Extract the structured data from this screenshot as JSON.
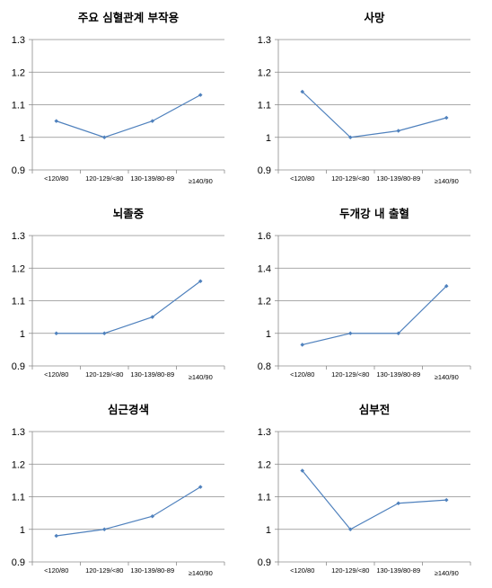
{
  "chart_data": [
    {
      "type": "line",
      "title": "주요 심혈관계 부작용",
      "categories": [
        "<120/80",
        "120-129/<80",
        "130-139/80-89",
        "≥140/90"
      ],
      "values": [
        1.05,
        1.0,
        1.05,
        1.13
      ],
      "ylim": [
        0.9,
        1.3
      ],
      "yticks": [
        "0.9",
        "1",
        "1.1",
        "1.2",
        "1.3"
      ],
      "grid": true,
      "color": "#4F81BD"
    },
    {
      "type": "line",
      "title": "사망",
      "categories": [
        "<120/80",
        "120-129/<80",
        "130-139/80-89",
        "≥140/90"
      ],
      "values": [
        1.14,
        1.0,
        1.02,
        1.06
      ],
      "ylim": [
        0.9,
        1.3
      ],
      "yticks": [
        "0.9",
        "1",
        "1.1",
        "1.2",
        "1.3"
      ],
      "grid": true,
      "color": "#4F81BD"
    },
    {
      "type": "line",
      "title": "뇌졸중",
      "categories": [
        "<120/80",
        "120-129/<80",
        "130-139/80-89",
        "≥140/90"
      ],
      "values": [
        1.0,
        1.0,
        1.05,
        1.16
      ],
      "ylim": [
        0.9,
        1.3
      ],
      "yticks": [
        "0.9",
        "1",
        "1.1",
        "1.2",
        "1.3"
      ],
      "grid": true,
      "color": "#4F81BD"
    },
    {
      "type": "line",
      "title": "두개강 내 출혈",
      "categories": [
        "<120/80",
        "120-129/<80",
        "130-139/80-89",
        "≥140/90"
      ],
      "values": [
        0.93,
        1.0,
        1.0,
        1.29
      ],
      "ylim": [
        0.8,
        1.6
      ],
      "yticks": [
        "0.8",
        "1",
        "1.2",
        "1.4",
        "1.6"
      ],
      "grid": true,
      "color": "#4F81BD"
    },
    {
      "type": "line",
      "title": "심근경색",
      "categories": [
        "<120/80",
        "120-129/<80",
        "130-139/80-89",
        "≥140/90"
      ],
      "values": [
        0.98,
        1.0,
        1.04,
        1.13
      ],
      "ylim": [
        0.9,
        1.3
      ],
      "yticks": [
        "0.9",
        "1",
        "1.1",
        "1.2",
        "1.3"
      ],
      "grid": true,
      "color": "#4F81BD"
    },
    {
      "type": "line",
      "title": "심부전",
      "categories": [
        "<120/80",
        "120-129/<80",
        "130-139/80-89",
        "≥140/90"
      ],
      "values": [
        1.18,
        1.0,
        1.08,
        1.09
      ],
      "ylim": [
        0.9,
        1.3
      ],
      "yticks": [
        "0.9",
        "1",
        "1.1",
        "1.2",
        "1.3"
      ],
      "grid": true,
      "color": "#4F81BD"
    }
  ]
}
